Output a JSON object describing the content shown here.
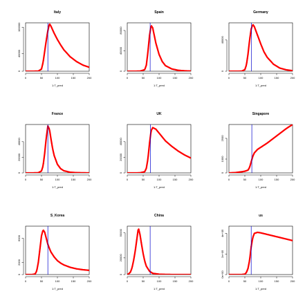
{
  "chart_data": [
    {
      "type": "line",
      "title": "Italy",
      "xlabel": "1:T_pred",
      "ylabel": "",
      "xlim": [
        0,
        200
      ],
      "ylim": [
        0,
        110000
      ],
      "xticks": [
        0,
        50,
        100,
        150,
        200
      ],
      "yticks": [
        0,
        40000,
        100000
      ],
      "vline_x": 70,
      "series": [
        {
          "name": "",
          "color": "#ff0000",
          "x": [
            0,
            20,
            40,
            50,
            55,
            60,
            65,
            70,
            75,
            80,
            90,
            100,
            110,
            120,
            140,
            160,
            180,
            200
          ],
          "values": [
            0,
            0,
            300,
            5000,
            20000,
            45000,
            70000,
            92000,
            108000,
            102000,
            86000,
            72000,
            60000,
            49000,
            33000,
            22000,
            14000,
            9000
          ]
        }
      ]
    },
    {
      "type": "line",
      "title": "Spain",
      "xlabel": "1:T_pred",
      "ylabel": "",
      "xlim": [
        0,
        200
      ],
      "ylim": [
        0,
        95000
      ],
      "xticks": [
        0,
        50,
        100,
        150,
        200
      ],
      "yticks": [
        0,
        40000,
        80000
      ],
      "vline_x": 72,
      "series": [
        {
          "name": "",
          "color": "#ff0000",
          "x": [
            0,
            20,
            40,
            55,
            60,
            65,
            70,
            75,
            80,
            85,
            90,
            100,
            110,
            120,
            140,
            160,
            180,
            200
          ],
          "values": [
            0,
            0,
            200,
            3000,
            12000,
            38000,
            70000,
            90000,
            85000,
            70000,
            55000,
            33000,
            19000,
            11000,
            4500,
            1800,
            800,
            300
          ]
        }
      ]
    },
    {
      "type": "line",
      "title": "Germany",
      "xlabel": "1:T_pred",
      "ylabel": "",
      "xlim": [
        0,
        200
      ],
      "ylim": [
        0,
        62000
      ],
      "xticks": [
        0,
        50,
        100,
        150,
        200
      ],
      "yticks": [
        0,
        40000
      ],
      "vline_x": 71,
      "series": [
        {
          "name": "",
          "color": "#ff0000",
          "x": [
            0,
            20,
            40,
            50,
            55,
            60,
            65,
            70,
            75,
            80,
            90,
            100,
            110,
            120,
            140,
            160,
            180,
            200
          ],
          "values": [
            0,
            0,
            100,
            2000,
            8000,
            22000,
            40000,
            54000,
            60000,
            57000,
            46000,
            35000,
            25000,
            18000,
            9000,
            4000,
            1800,
            700
          ]
        }
      ]
    },
    {
      "type": "line",
      "title": "France",
      "xlabel": "1:T_pred",
      "ylabel": "",
      "xlim": [
        0,
        200
      ],
      "ylim": [
        0,
        62000
      ],
      "xticks": [
        0,
        50,
        100,
        150,
        200
      ],
      "yticks": [
        0,
        20000,
        40000
      ],
      "vline_x": 70,
      "series": [
        {
          "name": "",
          "color": "#ff0000",
          "x": [
            0,
            20,
            40,
            50,
            55,
            60,
            65,
            70,
            75,
            80,
            85,
            90,
            100,
            110,
            120,
            140,
            160,
            180,
            200
          ],
          "values": [
            0,
            0,
            200,
            2500,
            9000,
            25000,
            45000,
            60000,
            56000,
            43000,
            31000,
            22000,
            11000,
            5500,
            2800,
            800,
            300,
            100,
            50
          ]
        }
      ]
    },
    {
      "type": "line",
      "title": "UK",
      "xlabel": "1:T_pred",
      "ylabel": "",
      "xlim": [
        0,
        200
      ],
      "ylim": [
        0,
        62000
      ],
      "xticks": [
        0,
        50,
        100,
        150,
        200
      ],
      "yticks": [
        0,
        20000,
        40000
      ],
      "vline_x": 73,
      "series": [
        {
          "name": "",
          "color": "#ff0000",
          "x": [
            0,
            20,
            40,
            55,
            60,
            65,
            70,
            75,
            80,
            90,
            100,
            110,
            120,
            140,
            160,
            180,
            200
          ],
          "values": [
            0,
            0,
            100,
            1500,
            6000,
            18000,
            38000,
            54000,
            58000,
            56000,
            51000,
            46000,
            41000,
            34000,
            28000,
            23000,
            19000
          ]
        }
      ]
    },
    {
      "type": "line",
      "title": "Singapore",
      "xlabel": "1:T_pred",
      "ylabel": "",
      "xlim": [
        0,
        200
      ],
      "ylim": [
        0,
        3500
      ],
      "xticks": [
        0,
        50,
        100,
        150,
        200
      ],
      "yticks": [
        0,
        1000,
        2500
      ],
      "vline_x": 72,
      "series": [
        {
          "name": "",
          "color": "#ff0000",
          "x": [
            0,
            20,
            40,
            50,
            60,
            65,
            70,
            75,
            80,
            90,
            100,
            120,
            140,
            160,
            180,
            200
          ],
          "values": [
            0,
            20,
            80,
            120,
            200,
            400,
            800,
            1200,
            1450,
            1700,
            1850,
            2150,
            2500,
            2850,
            3200,
            3500
          ]
        }
      ]
    },
    {
      "type": "line",
      "title": "S_Korea",
      "xlabel": "1:T_pred",
      "ylabel": "",
      "xlim": [
        0,
        200
      ],
      "ylim": [
        0,
        8000
      ],
      "xticks": [
        0,
        50,
        100,
        150,
        200
      ],
      "yticks": [
        0,
        2000,
        6000
      ],
      "vline_x": 70,
      "series": [
        {
          "name": "",
          "color": "#ff0000",
          "x": [
            0,
            20,
            30,
            35,
            40,
            45,
            50,
            55,
            60,
            65,
            70,
            75,
            80,
            90,
            100,
            110,
            120,
            140,
            160,
            180,
            200
          ],
          "values": [
            0,
            0,
            100,
            600,
            2000,
            4200,
            6400,
            7400,
            7000,
            6000,
            5000,
            4300,
            3700,
            2900,
            2300,
            1900,
            1600,
            1200,
            950,
            800,
            700
          ]
        }
      ]
    },
    {
      "type": "line",
      "title": "China",
      "xlabel": "1:T_pred",
      "ylabel": "",
      "xlim": [
        0,
        200
      ],
      "ylim": [
        0,
        58000
      ],
      "xticks": [
        0,
        50,
        100,
        150,
        200
      ],
      "yticks": [
        0,
        20000,
        50000
      ],
      "vline_x": 72,
      "series": [
        {
          "name": "",
          "color": "#ff0000",
          "x": [
            0,
            5,
            10,
            15,
            20,
            25,
            30,
            35,
            40,
            45,
            50,
            55,
            60,
            70,
            80,
            100,
            120,
            140,
            160,
            180,
            200
          ],
          "values": [
            0,
            1000,
            3000,
            8000,
            17000,
            28000,
            42000,
            56000,
            48000,
            36000,
            25000,
            16000,
            10000,
            4000,
            1500,
            400,
            150,
            50,
            20,
            10,
            5
          ]
        }
      ]
    },
    {
      "type": "line",
      "title": "us",
      "xlabel": "1:T_pred",
      "ylabel": "",
      "xlim": [
        0,
        200
      ],
      "ylim": [
        0,
        470000
      ],
      "xticks": [
        0,
        50,
        100,
        150,
        200
      ],
      "yticks": [
        0,
        200000,
        400000
      ],
      "ytick_labels": [
        "0e+00",
        "2e+05",
        "4e+05"
      ],
      "vline_x": 70,
      "series": [
        {
          "name": "",
          "color": "#ff0000",
          "x": [
            0,
            20,
            40,
            50,
            55,
            60,
            65,
            70,
            75,
            80,
            90,
            100,
            120,
            140,
            160,
            180,
            200
          ],
          "values": [
            0,
            0,
            200,
            4000,
            20000,
            60000,
            140000,
            270000,
            360000,
            400000,
            410000,
            405000,
            390000,
            375000,
            360000,
            345000,
            330000
          ]
        }
      ]
    }
  ]
}
